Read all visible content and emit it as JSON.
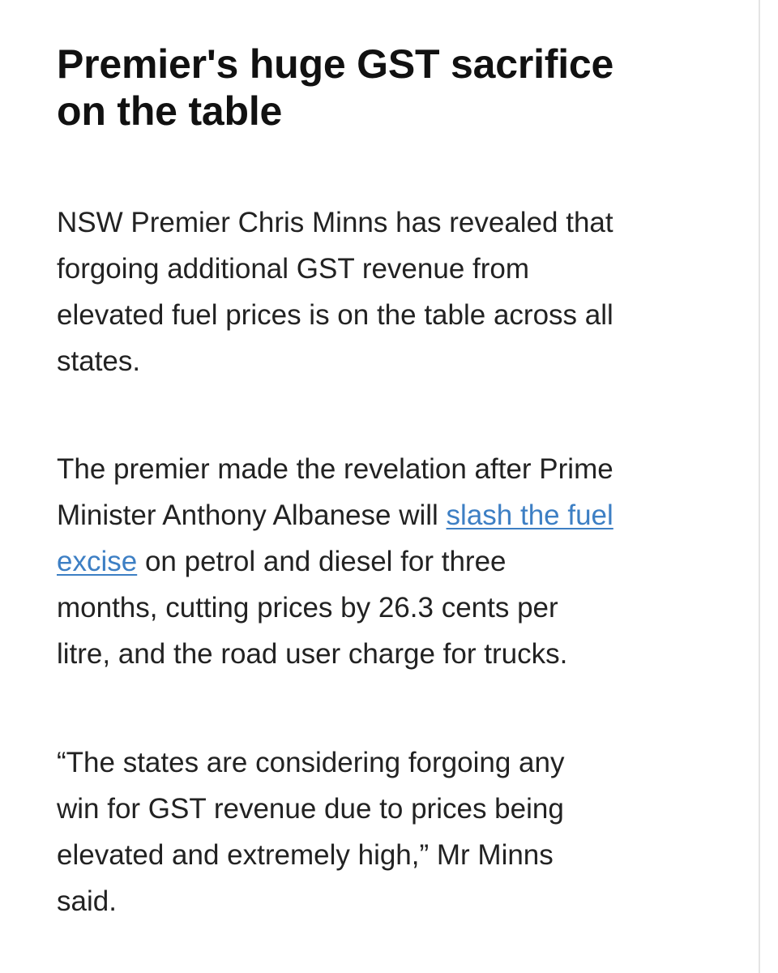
{
  "article": {
    "headline_line1": "Premier's huge GST sacrifice",
    "headline_line2": "on the table",
    "paragraphs": [
      {
        "lines": [
          "NSW Premier Chris Minns has revealed that",
          "forgoing additional GST revenue from",
          "elevated fuel prices is on the table across all",
          "states."
        ]
      },
      {
        "line1": "The premier made the revelation after Prime",
        "line2_before_link": "Minister Anthony Albanese will ",
        "link_part1": "slash the fuel",
        "link_part2": "excise",
        "line3_after_link": " on petrol and diesel for three",
        "line4": "months, cutting prices by 26.3 cents per",
        "line5": "litre, and the road user charge for trucks."
      },
      {
        "lines": [
          "“The states are considering forgoing any",
          "win for GST revenue due to prices being",
          "elevated and extremely high,” Mr Minns",
          "said."
        ]
      }
    ],
    "link_color": "#3d7fc4",
    "text_color": "#222222"
  }
}
